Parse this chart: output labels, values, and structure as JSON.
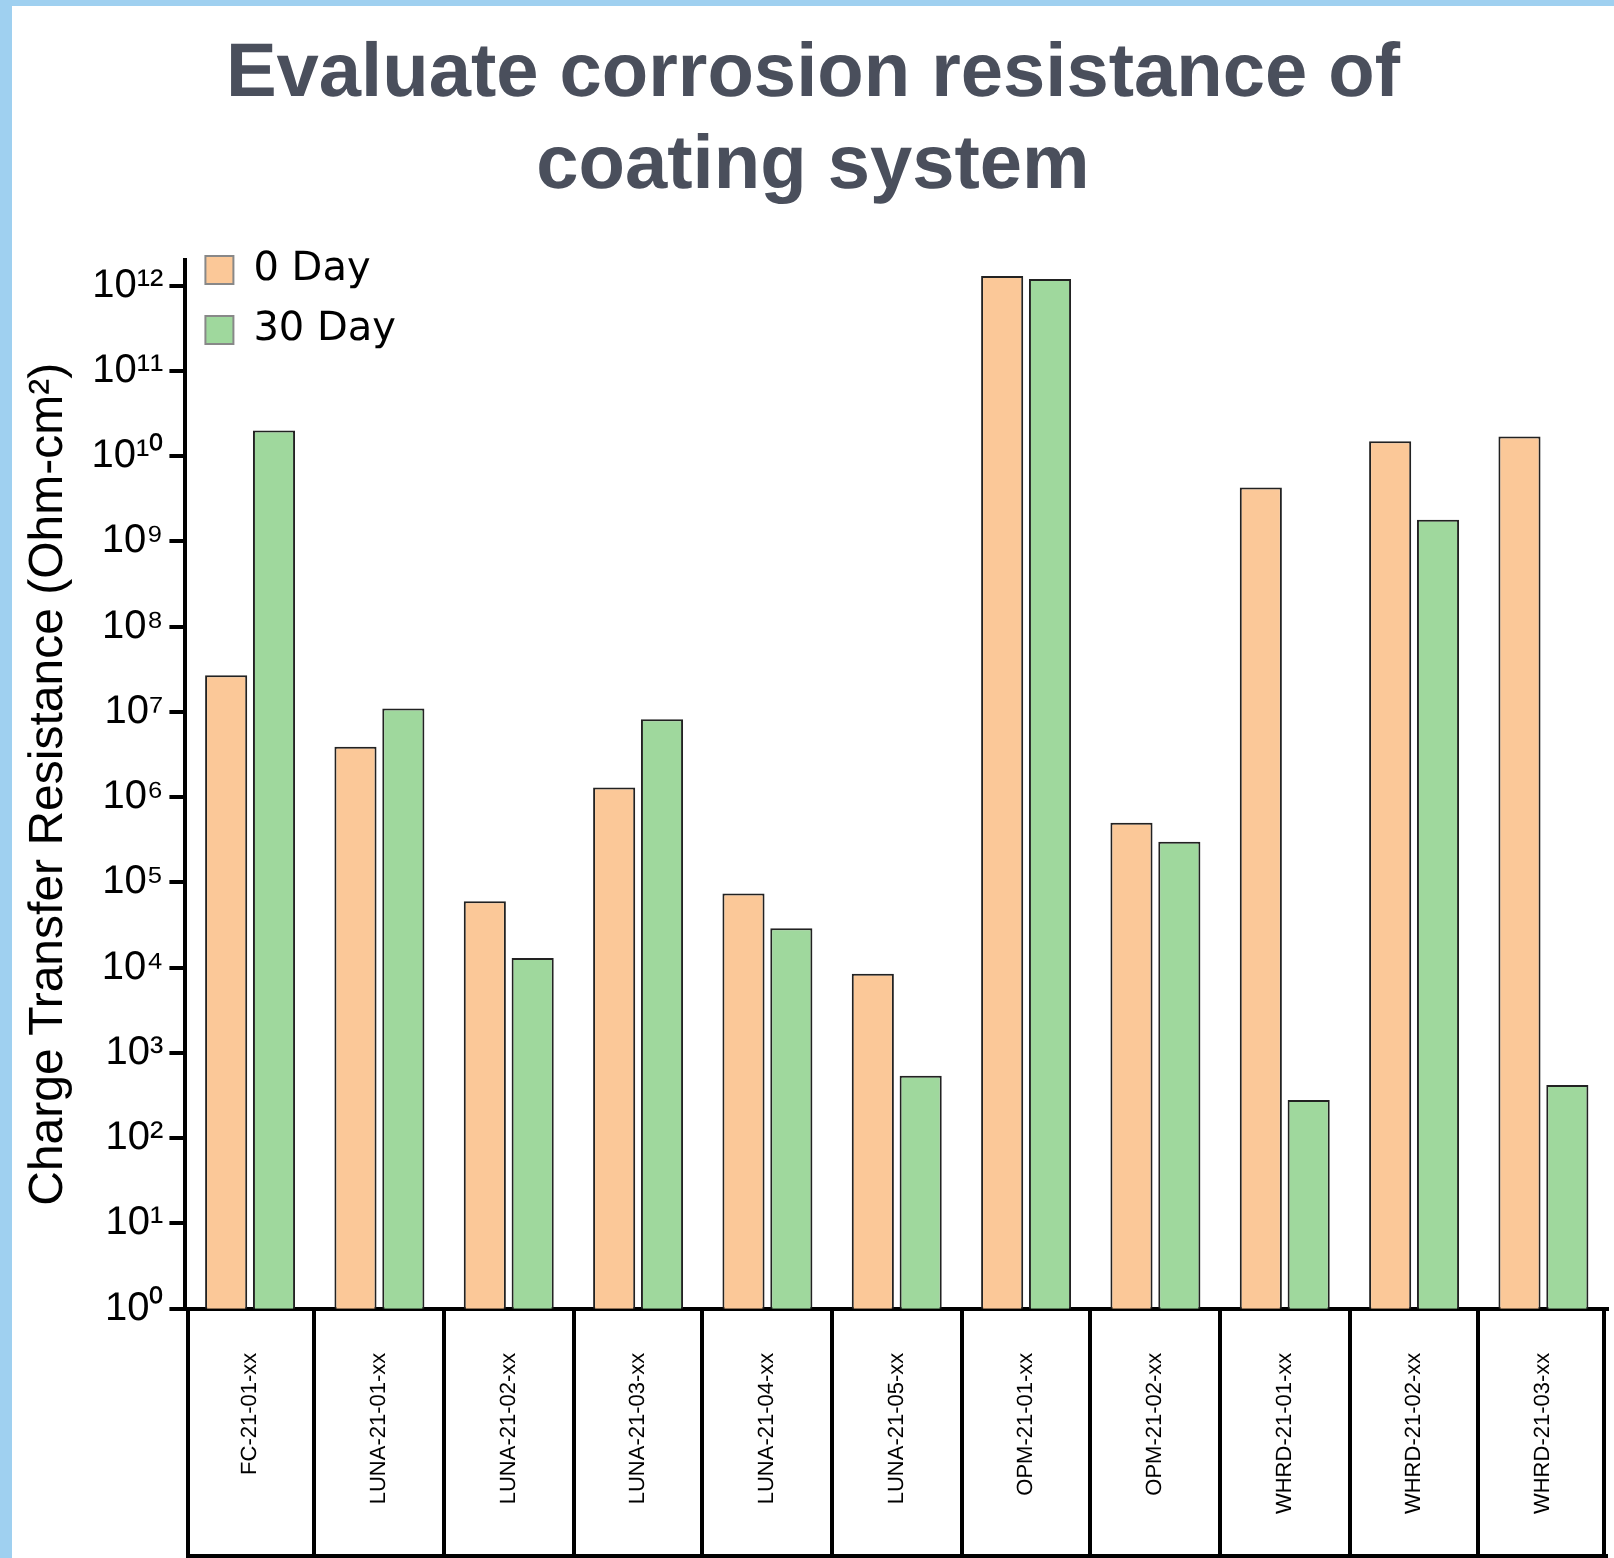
{
  "chart_data": {
    "type": "bar",
    "title": "Evaluate corrosion resistance of coating system",
    "ylabel": "Charge Transfer Resistance (Ohm-cm²)",
    "categories": [
      "FC-21-01-xx",
      "LUNA-21-01-xx",
      "LUNA-21-02-xx",
      "LUNA-21-03-xx",
      "LUNA-21-04-xx",
      "LUNA-21-05-xx",
      "OPM-21-01-xx",
      "OPM-21-02-xx",
      "WHRD-21-01-xx",
      "WHRD-21-02-xx",
      "WHRD-21-03-xx"
    ],
    "series": [
      {
        "name": "0 Day",
        "color": "#fbc898",
        "values": [
          27000000.0,
          3900000.0,
          60000.0,
          1300000.0,
          74000.0,
          8500.0,
          1300000000000.0,
          500000.0,
          4300000000.0,
          15000000000.0,
          17000000000.0
        ]
      },
      {
        "name": "30 Day",
        "color": "#9fd89d",
        "values": [
          20000000000.0,
          11000000.0,
          13000.0,
          8200000.0,
          29000.0,
          540,
          1200000000000.0,
          300000.0,
          280,
          1800000000.0,
          420
        ]
      }
    ],
    "log": true,
    "ylim": [
      1,
      2000000000000.0
    ],
    "yticks": [
      {
        "value": 1,
        "label": "10⁰"
      },
      {
        "value": 10,
        "label": "10¹"
      },
      {
        "value": 100,
        "label": "10²"
      },
      {
        "value": 1000,
        "label": "10³"
      },
      {
        "value": 10000.0,
        "label": "10⁴"
      },
      {
        "value": 100000.0,
        "label": "10⁵"
      },
      {
        "value": 1000000.0,
        "label": "10⁶"
      },
      {
        "value": 10000000.0,
        "label": "10⁷"
      },
      {
        "value": 100000000.0,
        "label": "10⁸"
      },
      {
        "value": 1000000000.0,
        "label": "10⁹"
      },
      {
        "value": 10000000000.0,
        "label": "10¹⁰"
      },
      {
        "value": 100000000000.0,
        "label": "10¹¹"
      },
      {
        "value": 1000000000000.0,
        "label": "10¹²"
      }
    ],
    "grid": false,
    "legend": "top left"
  }
}
